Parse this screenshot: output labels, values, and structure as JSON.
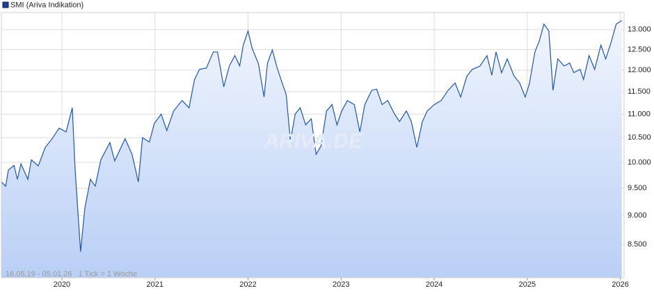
{
  "chart_data": {
    "type": "line",
    "legend": "SMI (Ariva Indikation)",
    "footer": "16.05.19 - 05.01.26   1 Tick = 1 Woche",
    "watermark": "ARIVA.DE",
    "color": "#1f56a8",
    "log_scale": true,
    "grid": true,
    "xlim": [
      2019.35,
      2026.04
    ],
    "ylim": [
      7960,
      13450
    ],
    "xticks": [
      2020,
      2021,
      2022,
      2023,
      2024,
      2025,
      2026
    ],
    "yticks": [
      {
        "value": 8500,
        "label": "8.500"
      },
      {
        "value": 9000,
        "label": "9.000"
      },
      {
        "value": 9500,
        "label": "9.500"
      },
      {
        "value": 10000,
        "label": "10.000"
      },
      {
        "value": 10500,
        "label": "10.500"
      },
      {
        "value": 11000,
        "label": "11.000"
      },
      {
        "value": 11500,
        "label": "11.500"
      },
      {
        "value": 12000,
        "label": "12.000"
      },
      {
        "value": 12500,
        "label": "12.500"
      },
      {
        "value": 13000,
        "label": "13.000"
      }
    ],
    "x": [
      2019.351,
      2019.396,
      2019.425,
      2019.485,
      2019.522,
      2019.56,
      2019.634,
      2019.672,
      2019.746,
      2019.821,
      2019.896,
      2019.97,
      2020.045,
      2020.112,
      2020.142,
      2020.201,
      2020.246,
      2020.306,
      2020.358,
      2020.418,
      2020.515,
      2020.567,
      2020.679,
      2020.754,
      2020.821,
      2020.866,
      2020.94,
      2020.993,
      2021.067,
      2021.127,
      2021.201,
      2021.291,
      2021.366,
      2021.425,
      2021.478,
      2021.552,
      2021.627,
      2021.672,
      2021.739,
      2021.799,
      2021.858,
      2021.91,
      2021.948,
      2022.0,
      2022.045,
      2022.112,
      2022.172,
      2022.209,
      2022.261,
      2022.306,
      2022.366,
      2022.41,
      2022.455,
      2022.507,
      2022.56,
      2022.619,
      2022.679,
      2022.731,
      2022.784,
      2022.843,
      2022.903,
      2022.955,
      2023.007,
      2023.067,
      2023.142,
      2023.201,
      2023.254,
      2023.328,
      2023.381,
      2023.44,
      2023.5,
      2023.575,
      2023.627,
      2023.701,
      2023.754,
      2023.813,
      2023.873,
      2023.925,
      2024.0,
      2024.075,
      2024.149,
      2024.224,
      2024.284,
      2024.351,
      2024.41,
      2024.493,
      2024.567,
      2024.619,
      2024.664,
      2024.724,
      2024.784,
      2024.858,
      2024.918,
      2024.978,
      2025.022,
      2025.082,
      2025.127,
      2025.179,
      2025.231,
      2025.276,
      2025.328,
      2025.396,
      2025.455,
      2025.5,
      2025.567,
      2025.604,
      2025.664,
      2025.724,
      2025.791,
      2025.843,
      2025.903,
      2025.955,
      2026.015
    ],
    "values": [
      9620,
      9540,
      9850,
      9940,
      9670,
      9970,
      9670,
      10050,
      9930,
      10300,
      10480,
      10700,
      10620,
      11140,
      9850,
      8380,
      9130,
      9670,
      9540,
      10050,
      10400,
      10030,
      10480,
      10160,
      9620,
      10500,
      10410,
      10800,
      11000,
      10650,
      11070,
      11300,
      11140,
      11780,
      12020,
      12050,
      12440,
      12440,
      11610,
      12100,
      12350,
      12100,
      12610,
      12965,
      12525,
      12150,
      11380,
      12170,
      12490,
      12100,
      11700,
      11430,
      10430,
      11000,
      11140,
      10770,
      10900,
      10160,
      10330,
      11070,
      11210,
      10770,
      11070,
      11300,
      11210,
      10620,
      11210,
      11530,
      11560,
      11210,
      11300,
      11000,
      10840,
      11070,
      10840,
      10300,
      10840,
      11070,
      11210,
      11300,
      11530,
      11700,
      11380,
      11860,
      12020,
      12100,
      12350,
      11880,
      12440,
      11940,
      12270,
      11860,
      11700,
      11380,
      11680,
      12440,
      12700,
      13145,
      12965,
      11530,
      12270,
      12100,
      12170,
      11940,
      12020,
      11780,
      12350,
      12020,
      12610,
      12270,
      12700,
      13145,
      13235
    ]
  }
}
